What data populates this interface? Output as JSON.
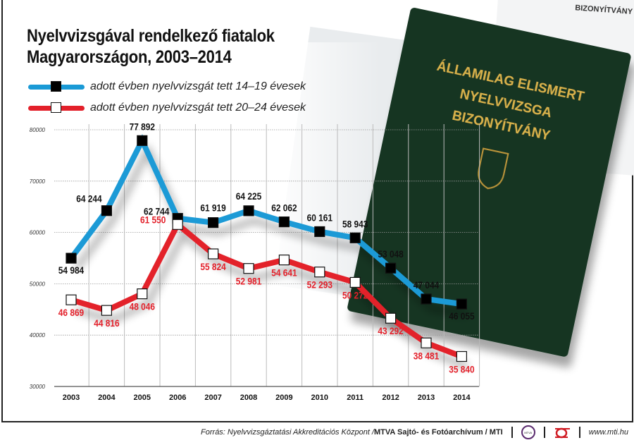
{
  "title_lines": [
    "Nyelvvizsgával rendelkező fiatalok",
    "Magyarországon, 2003–2014"
  ],
  "legend": [
    {
      "label": "adott évben nyelvvizsgát tett 14–19 évesek",
      "color": "#1a9ad6",
      "marker": "filled-black-square"
    },
    {
      "label": "adott évben nyelvvizsgát tett 20–24 évesek",
      "color": "#e3202a",
      "marker": "white-square"
    }
  ],
  "chart_data": {
    "type": "line",
    "title": "Nyelvvizsgával rendelkező fiatalok Magyarországon, 2003–2014",
    "xlabel": "",
    "ylabel": "",
    "categories": [
      "2003",
      "2004",
      "2005",
      "2006",
      "2007",
      "2008",
      "2009",
      "2010",
      "2011",
      "2012",
      "2013",
      "2014"
    ],
    "ylim": [
      30000,
      80000
    ],
    "yticks": [
      "30000",
      "40000",
      "50000",
      "60000",
      "70000",
      "80000"
    ],
    "grid": true,
    "legend_position": "top-left",
    "series": [
      {
        "name": "adott évben nyelvvizsgát tett 14–19 évesek",
        "color": "#1a9ad6",
        "values": [
          54984,
          64244,
          77892,
          62744,
          61919,
          64225,
          62062,
          60161,
          58943,
          53048,
          47044,
          46055
        ],
        "labels": [
          "54 984",
          "64 244",
          "77 892",
          "62 744",
          "61 919",
          "64 225",
          "62 062",
          "60 161",
          "58 943",
          "53 048",
          "47 044",
          "46 055"
        ]
      },
      {
        "name": "adott évben nyelvvizsgát tett 20–24 évesek",
        "color": "#e3202a",
        "values": [
          46869,
          44816,
          48046,
          61550,
          55824,
          52981,
          54641,
          52293,
          50272,
          43292,
          38481,
          35840
        ],
        "labels": [
          "46 869",
          "44 816",
          "48 046",
          "61 550",
          "55 824",
          "52 981",
          "54 641",
          "52 293",
          "50 272",
          "43 292",
          "38 481",
          "35 840"
        ]
      }
    ]
  },
  "certificate": {
    "front_text": [
      "ÁLLAMILAG ELISMERT",
      "NYELVVIZSGA",
      "BIZONYÍTVÁNY"
    ],
    "back_text": "BIZONYÍTVÁNY"
  },
  "footer": {
    "source_prefix": "Forrás: Nyelvvizsgáztatási Akkreditációs Központ / ",
    "source_bold": "MTVA Sajtó- és Fotóarchívum / MTI",
    "logo1": "MTVA",
    "website": "www.mti.hu"
  }
}
